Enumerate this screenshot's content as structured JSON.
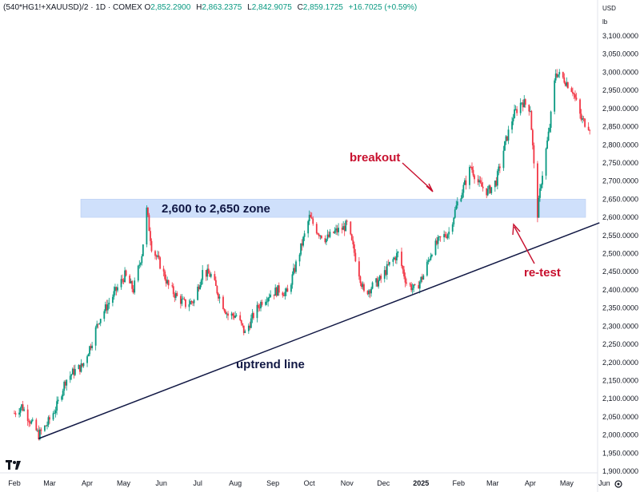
{
  "header": {
    "symbol": "(540*HG1!+XAUUSD)/2 · 1D · COMEX",
    "open_label": "O",
    "open": "2,852.2900",
    "high_label": "H",
    "high": "2,863.2375",
    "low_label": "L",
    "low": "2,842.9075",
    "close_label": "C",
    "close": "2,859.1725",
    "change": "+16.7025 (+0.59%)"
  },
  "axis": {
    "currency": "USD",
    "unit": "lb"
  },
  "colors": {
    "up": "#089981",
    "down": "#f23645",
    "zone": "#cfe0fb",
    "trendline": "#111844",
    "annotation": "#c8102e"
  },
  "icons": {
    "logo": "tradingview-logo-icon",
    "settings": "gear-icon"
  },
  "chart_data": {
    "type": "candlestick",
    "y_axis": {
      "ticks": [
        "3,100.0000",
        "3,050.0000",
        "3,000.0000",
        "2,950.0000",
        "2,900.0000",
        "2,850.0000",
        "2,800.0000",
        "2,750.0000",
        "2,700.0000",
        "2,650.0000",
        "2,600.0000",
        "2,550.0000",
        "2,500.0000",
        "2,450.0000",
        "2,400.0000",
        "2,350.0000",
        "2,300.0000",
        "2,250.0000",
        "2,200.0000",
        "2,150.0000",
        "2,100.0000",
        "2,050.0000",
        "2,000.0000",
        "1,950.0000",
        "1,900.0000"
      ],
      "ylim": [
        1880,
        3120
      ]
    },
    "x_axis": {
      "labels": [
        "Feb",
        "Mar",
        "Apr",
        "May",
        "Jun",
        "Jul",
        "Aug",
        "Sep",
        "Oct",
        "Nov",
        "Dec",
        "2025",
        "Feb",
        "Mar",
        "Apr",
        "May",
        "Jun"
      ]
    },
    "price_path": [
      [
        "2024-02-01",
        2060
      ],
      [
        "2024-02-07",
        2080
      ],
      [
        "2024-02-14",
        2040
      ],
      [
        "2024-02-21",
        2000
      ],
      [
        "2024-02-28",
        2030
      ],
      [
        "2024-03-07",
        2080
      ],
      [
        "2024-03-14",
        2150
      ],
      [
        "2024-03-21",
        2175
      ],
      [
        "2024-03-28",
        2190
      ],
      [
        "2024-04-04",
        2250
      ],
      [
        "2024-04-11",
        2320
      ],
      [
        "2024-04-18",
        2360
      ],
      [
        "2024-04-25",
        2400
      ],
      [
        "2024-05-02",
        2440
      ],
      [
        "2024-05-09",
        2400
      ],
      [
        "2024-05-16",
        2500
      ],
      [
        "2024-05-20",
        2620
      ],
      [
        "2024-05-24",
        2520
      ],
      [
        "2024-05-31",
        2470
      ],
      [
        "2024-06-07",
        2410
      ],
      [
        "2024-06-14",
        2380
      ],
      [
        "2024-06-21",
        2360
      ],
      [
        "2024-06-28",
        2370
      ],
      [
        "2024-07-05",
        2450
      ],
      [
        "2024-07-12",
        2440
      ],
      [
        "2024-07-19",
        2380
      ],
      [
        "2024-07-26",
        2330
      ],
      [
        "2024-08-02",
        2330
      ],
      [
        "2024-08-09",
        2280
      ],
      [
        "2024-08-16",
        2330
      ],
      [
        "2024-08-23",
        2370
      ],
      [
        "2024-08-30",
        2390
      ],
      [
        "2024-09-06",
        2400
      ],
      [
        "2024-09-13",
        2390
      ],
      [
        "2024-09-20",
        2470
      ],
      [
        "2024-09-27",
        2550
      ],
      [
        "2024-10-01",
        2600
      ],
      [
        "2024-10-08",
        2560
      ],
      [
        "2024-10-15",
        2540
      ],
      [
        "2024-10-22",
        2560
      ],
      [
        "2024-10-29",
        2570
      ],
      [
        "2024-11-01",
        2580
      ],
      [
        "2024-11-08",
        2490
      ],
      [
        "2024-11-15",
        2390
      ],
      [
        "2024-11-22",
        2410
      ],
      [
        "2024-11-29",
        2430
      ],
      [
        "2024-12-06",
        2470
      ],
      [
        "2024-12-13",
        2500
      ],
      [
        "2024-12-20",
        2420
      ],
      [
        "2024-12-27",
        2400
      ],
      [
        "2025-01-03",
        2440
      ],
      [
        "2025-01-10",
        2510
      ],
      [
        "2025-01-17",
        2540
      ],
      [
        "2025-01-24",
        2560
      ],
      [
        "2025-01-31",
        2640
      ],
      [
        "2025-02-07",
        2700
      ],
      [
        "2025-02-11",
        2740
      ],
      [
        "2025-02-18",
        2690
      ],
      [
        "2025-02-25",
        2670
      ],
      [
        "2025-03-04",
        2700
      ],
      [
        "2025-03-11",
        2800
      ],
      [
        "2025-03-18",
        2880
      ],
      [
        "2025-03-25",
        2920
      ],
      [
        "2025-04-01",
        2900
      ],
      [
        "2025-04-04",
        2740
      ],
      [
        "2025-04-07",
        2610
      ],
      [
        "2025-04-10",
        2700
      ],
      [
        "2025-04-17",
        2850
      ],
      [
        "2025-04-22",
        3000
      ],
      [
        "2025-04-29",
        2980
      ],
      [
        "2025-05-06",
        2950
      ],
      [
        "2025-05-13",
        2870
      ],
      [
        "2025-05-20",
        2850
      ]
    ],
    "zone": {
      "low": 2600,
      "high": 2650,
      "label": "2,600 to 2,650 zone"
    },
    "trendline": {
      "start": [
        "2024-02-21",
        1990
      ],
      "end": [
        "2025-05-28",
        2585
      ],
      "label": "uptrend line"
    },
    "annotations": [
      {
        "text": "breakout",
        "date": "2025-02-03",
        "value": 2640
      },
      {
        "text": "re-test",
        "date": "2025-04-09",
        "value": 2575
      }
    ]
  }
}
